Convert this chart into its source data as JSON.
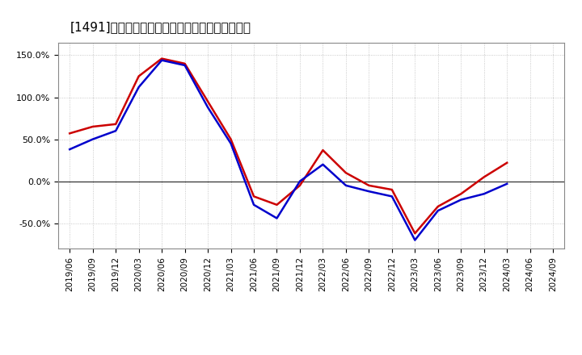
{
  "title": "[1491]　有利子負債キャッシュフロー比率の推移",
  "background_color": "#ffffff",
  "plot_bg_color": "#ffffff",
  "grid_color": "#aaaaaa",
  "zero_line_color": "#333333",
  "ylim": [
    -0.8,
    1.65
  ],
  "yticks": [
    -0.5,
    0.0,
    0.5,
    1.0,
    1.5
  ],
  "ytick_labels": [
    "-50.0%",
    "0.0%",
    "50.0%",
    "100.0%",
    "150.0%"
  ],
  "x_dates": [
    "2019/06",
    "2019/09",
    "2019/12",
    "2020/03",
    "2020/06",
    "2020/09",
    "2020/12",
    "2021/03",
    "2021/06",
    "2021/09",
    "2021/12",
    "2022/03",
    "2022/06",
    "2022/09",
    "2022/12",
    "2023/03",
    "2023/06",
    "2023/09",
    "2023/12",
    "2024/03",
    "2024/06",
    "2024/09"
  ],
  "red_series": [
    0.57,
    0.65,
    0.68,
    1.25,
    1.46,
    1.4,
    0.95,
    0.5,
    -0.18,
    -0.28,
    -0.05,
    0.37,
    0.1,
    -0.05,
    -0.1,
    -0.62,
    -0.3,
    -0.15,
    0.05,
    0.22,
    null,
    null
  ],
  "blue_series": [
    0.38,
    0.5,
    0.6,
    1.12,
    1.44,
    1.38,
    0.88,
    0.45,
    -0.28,
    -0.44,
    0.0,
    0.2,
    -0.05,
    -0.12,
    -0.18,
    -0.7,
    -0.35,
    -0.22,
    -0.15,
    -0.03,
    null,
    null
  ],
  "line_width": 1.8,
  "title_fontsize": 11,
  "tick_fontsize": 8,
  "legend_fontsize": 9
}
